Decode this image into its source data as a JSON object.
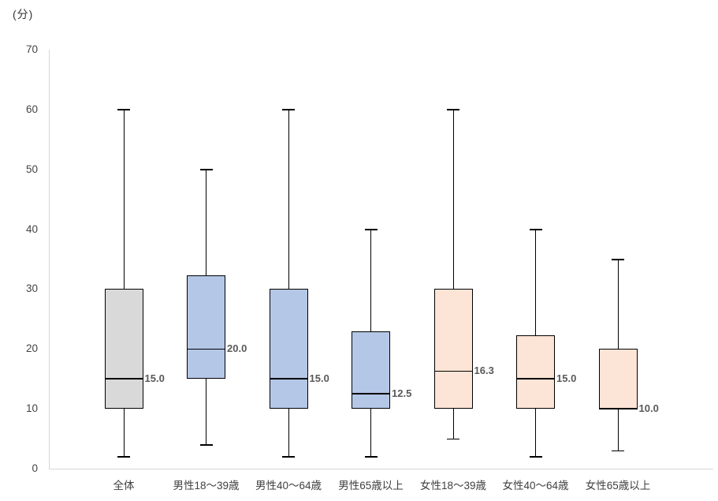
{
  "chart_data": {
    "type": "boxplot",
    "title": "",
    "unit_label": "(分)",
    "ylabel": "",
    "xlabel": "",
    "ylim": [
      0,
      70
    ],
    "yticks": [
      0,
      10,
      20,
      30,
      40,
      50,
      60,
      70
    ],
    "grid": false,
    "legend": "none",
    "categories": [
      "全体",
      "男性18〜39歳",
      "男性40〜64歳",
      "男性65歳以上",
      "女性18〜39歳",
      "女性40〜64歳",
      "女性65歳以上"
    ],
    "series": [
      {
        "category": "全体",
        "min": 2,
        "q1": 10,
        "median": 15.0,
        "q3": 30,
        "max": 60,
        "median_label": "15.0",
        "fill_color": "#d9d9d9"
      },
      {
        "category": "男性18〜39歳",
        "min": 4,
        "q1": 15,
        "median": 20.0,
        "q3": 32.3,
        "max": 50,
        "median_label": "20.0",
        "fill_color": "#b4c7e7"
      },
      {
        "category": "男性40〜64歳",
        "min": 2,
        "q1": 10,
        "median": 15.0,
        "q3": 30,
        "max": 60,
        "median_label": "15.0",
        "fill_color": "#b4c7e7"
      },
      {
        "category": "男性65歳以上",
        "min": 2,
        "q1": 10,
        "median": 12.5,
        "q3": 23,
        "max": 40,
        "median_label": "12.5",
        "fill_color": "#b4c7e7"
      },
      {
        "category": "女性18〜39歳",
        "min": 5,
        "q1": 10,
        "median": 16.3,
        "q3": 30,
        "max": 60,
        "median_label": "16.3",
        "fill_color": "#fce4d6"
      },
      {
        "category": "女性40〜64歳",
        "min": 2,
        "q1": 10,
        "median": 15.0,
        "q3": 22.3,
        "max": 40,
        "median_label": "15.0",
        "fill_color": "#fce4d6"
      },
      {
        "category": "女性65歳以上",
        "min": 3,
        "q1": 10,
        "median": 10.0,
        "q3": 20,
        "max": 35,
        "median_label": "10.0",
        "fill_color": "#fce4d6"
      }
    ],
    "colors": {
      "overall_fill": "#d9d9d9",
      "male_fill": "#b4c7e7",
      "female_fill": "#fce4d6",
      "stroke": "#000000",
      "axis_line": "#d6d6d6",
      "median_label_text": "#595959",
      "tick_label_text": "#444444"
    }
  }
}
